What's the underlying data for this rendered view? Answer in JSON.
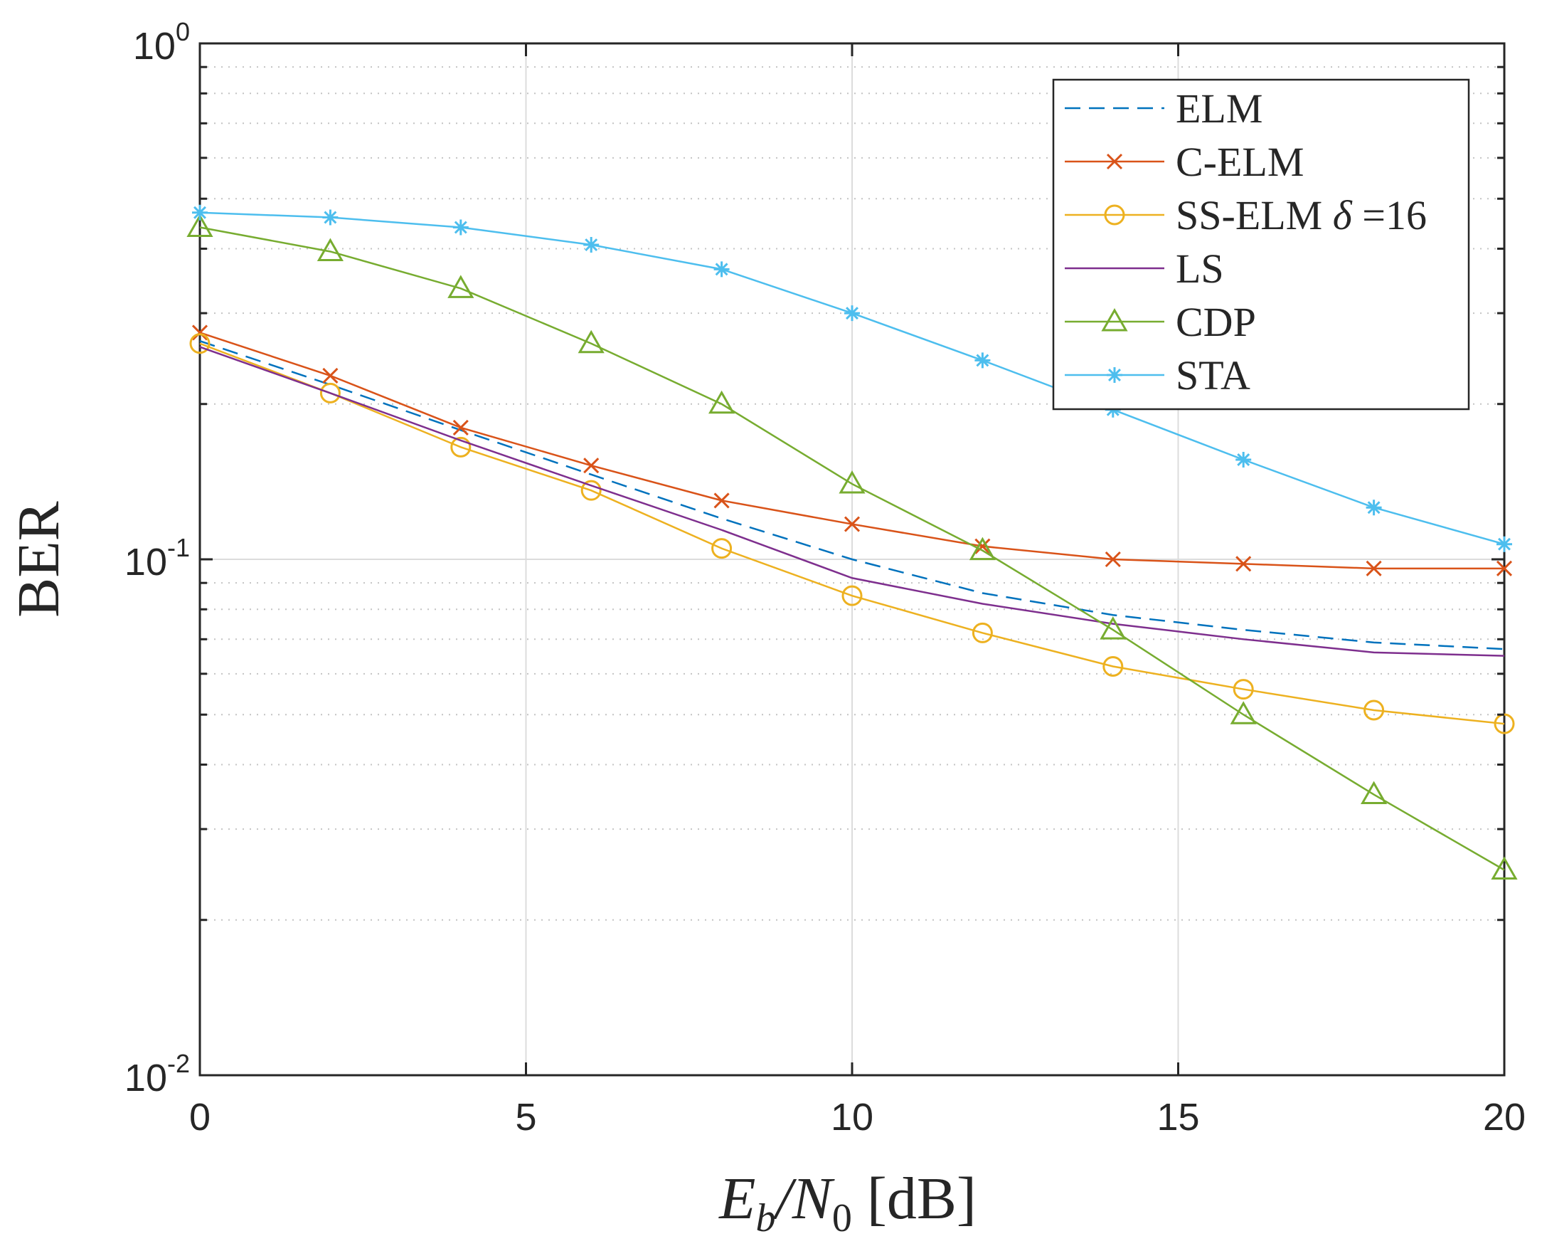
{
  "chart_data": {
    "type": "line",
    "xlabel": {
      "main": "E",
      "sub1": "b",
      "slash": "/N",
      "sub2": "0",
      "unit": " [dB]"
    },
    "ylabel": "BER",
    "xlim": [
      0,
      20
    ],
    "ylim": [
      0.01,
      1
    ],
    "yscale": "log",
    "grid": true,
    "legend_location": "top-right",
    "x_ticks": [
      {
        "value": 0,
        "label": "0"
      },
      {
        "value": 5,
        "label": "5"
      },
      {
        "value": 10,
        "label": "10"
      },
      {
        "value": 15,
        "label": "15"
      },
      {
        "value": 20,
        "label": "20"
      }
    ],
    "y_ticks": [
      {
        "value": 1,
        "base": "10",
        "exp": "0"
      },
      {
        "value": 0.1,
        "base": "10",
        "exp": "-1"
      },
      {
        "value": 0.01,
        "base": "10",
        "exp": "-2"
      }
    ],
    "x": [
      0,
      2,
      4,
      6,
      8,
      10,
      12,
      14,
      16,
      18,
      20
    ],
    "series": [
      {
        "name": "ELM",
        "color": "#0072BD",
        "dash": "dashed",
        "marker": "none",
        "values": [
          0.265,
          0.218,
          0.178,
          0.146,
          0.12,
          0.1,
          0.086,
          0.078,
          0.073,
          0.069,
          0.067
        ]
      },
      {
        "name": "C-ELM",
        "color": "#D95319",
        "dash": "solid",
        "marker": "x",
        "values": [
          0.275,
          0.227,
          0.18,
          0.152,
          0.13,
          0.117,
          0.106,
          0.1,
          0.098,
          0.096,
          0.096
        ]
      },
      {
        "name": "SS-ELM",
        "name_suffix": " =16",
        "delta_symbol": "δ",
        "color": "#EDB120",
        "dash": "solid",
        "marker": "circle",
        "values": [
          0.262,
          0.21,
          0.165,
          0.136,
          0.105,
          0.085,
          0.072,
          0.062,
          0.056,
          0.051,
          0.048
        ]
      },
      {
        "name": "LS",
        "color": "#7E2F8E",
        "dash": "solid",
        "marker": "none",
        "values": [
          0.258,
          0.21,
          0.17,
          0.139,
          0.114,
          0.092,
          0.082,
          0.075,
          0.07,
          0.066,
          0.065
        ]
      },
      {
        "name": "CDP",
        "color": "#77AC30",
        "dash": "solid",
        "marker": "triangle",
        "values": [
          0.44,
          0.395,
          0.335,
          0.262,
          0.2,
          0.14,
          0.104,
          0.073,
          0.05,
          0.035,
          0.025
        ]
      },
      {
        "name": "STA",
        "color": "#4DBEEE",
        "dash": "solid",
        "marker": "asterisk",
        "values": [
          0.47,
          0.46,
          0.44,
          0.407,
          0.365,
          0.3,
          0.243,
          0.195,
          0.156,
          0.126,
          0.107
        ]
      }
    ]
  }
}
